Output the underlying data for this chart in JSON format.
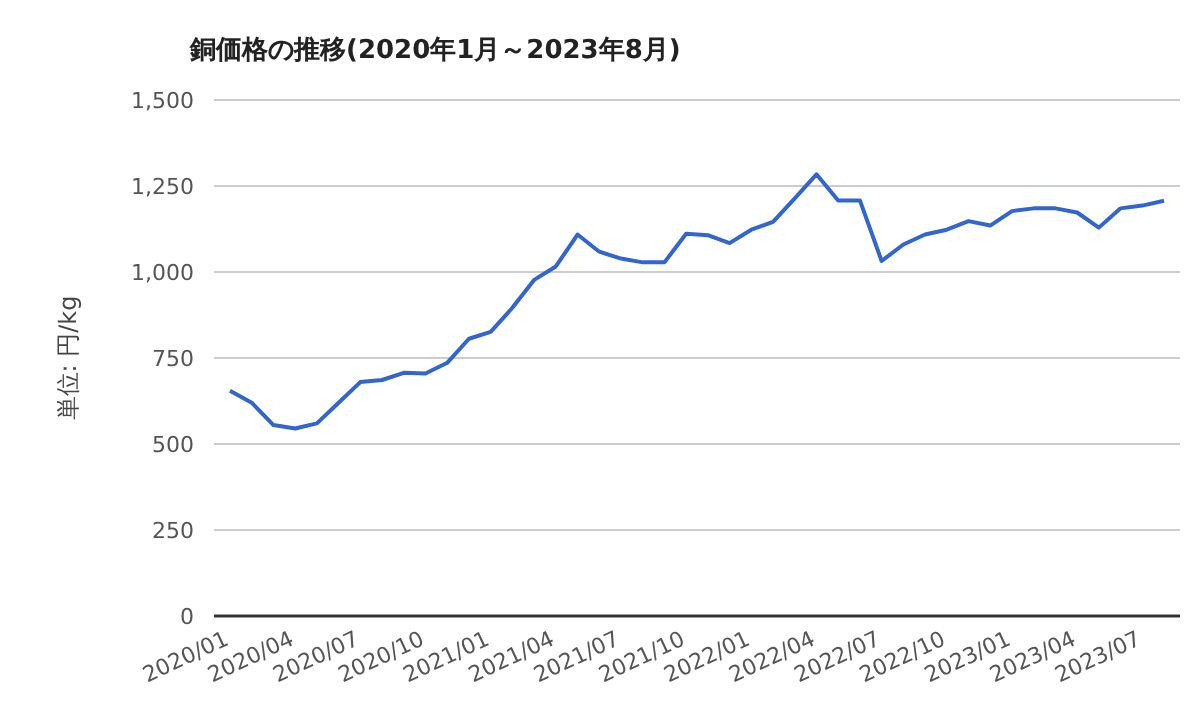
{
  "chart_data": {
    "type": "line",
    "title": "銅価格の推移(2020年1月～2023年8月)",
    "ylabel": "単位: 円/kg",
    "categories": [
      "2020/01",
      null,
      null,
      "2020/04",
      null,
      null,
      "2020/07",
      null,
      null,
      "2020/10",
      null,
      null,
      "2021/01",
      null,
      null,
      "2021/04",
      null,
      null,
      "2021/07",
      null,
      null,
      "2021/10",
      null,
      null,
      "2022/01",
      null,
      null,
      "2022/04",
      null,
      null,
      "2022/07",
      null,
      null,
      "2022/10",
      null,
      null,
      "2023/01",
      null,
      null,
      "2023/04",
      null,
      null,
      "2023/07",
      null
    ],
    "series": [
      {
        "color": "#3366cc",
        "values": [
          655,
          620,
          555,
          545,
          560,
          620,
          680,
          686,
          707,
          705,
          736,
          806,
          826,
          896,
          977,
          1016,
          1109,
          1059,
          1039,
          1028,
          1028,
          1111,
          1107,
          1084,
          1123,
          1146,
          1214,
          1284,
          1208,
          1208,
          1032,
          1080,
          1109,
          1123,
          1148,
          1135,
          1177,
          1185,
          1185,
          1173,
          1129,
          1185,
          1193,
          1207
        ]
      }
    ],
    "ylim": [
      0,
      1500
    ],
    "yticks": [
      {
        "value": 0,
        "label": "0"
      },
      {
        "value": 250,
        "label": "250"
      },
      {
        "value": 500,
        "label": "500"
      },
      {
        "value": 750,
        "label": "750"
      },
      {
        "value": 1000,
        "label": "1,000"
      },
      {
        "value": 1250,
        "label": "1,250"
      },
      {
        "value": 1500,
        "label": "1,500"
      }
    ],
    "grid": "y",
    "marker": "none",
    "line_style": "solid"
  }
}
